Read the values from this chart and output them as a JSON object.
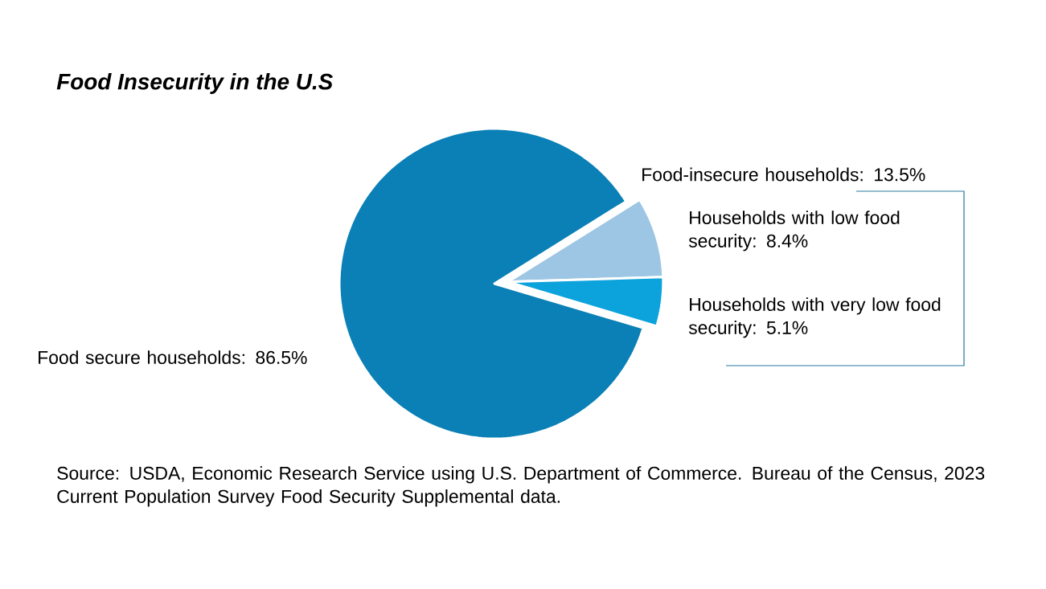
{
  "chart_data": {
    "type": "pie",
    "title": "Food Insecurity in the U.S",
    "categories": [
      "Households with low food security: 8.4%",
      "Households with very low food security: 5.1%",
      "Food secure households: 86.5%"
    ],
    "values": [
      8.4,
      5.1,
      86.5
    ],
    "colors": [
      "#9cc6e4",
      "#0ca2dc",
      "#0a80b6"
    ],
    "annotations": [
      "Food-insecure households: 13.5%",
      "Source: USDA, Economic Research Service using U.S. Department of Commerce. Bureau of the Census, 2023 Current Population Survey Food Security Supplemental data."
    ]
  }
}
